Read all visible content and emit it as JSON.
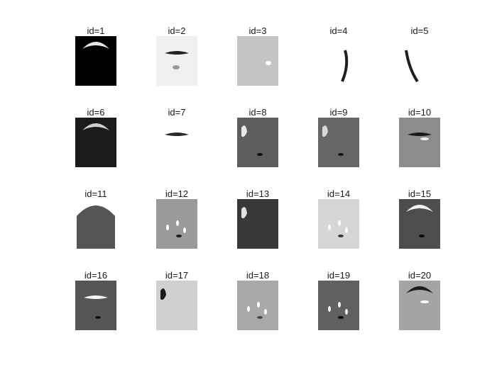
{
  "panels": [
    {
      "id": 1,
      "label": "id=1",
      "bg": "#000000",
      "features": [
        {
          "t": "arc",
          "c": "#e6e6e6"
        }
      ]
    },
    {
      "id": 2,
      "label": "id=2",
      "bg": "#f0f0f0",
      "features": [
        {
          "t": "bar",
          "c": "#222222"
        },
        {
          "t": "blob",
          "c": "#9a9a9a"
        }
      ]
    },
    {
      "id": 3,
      "label": "id=3",
      "bg": "#c4c4c4",
      "features": [
        {
          "t": "dot",
          "c": "#ffffff"
        }
      ]
    },
    {
      "id": 4,
      "label": "id=4",
      "bg": "#ffffff",
      "features": [
        {
          "t": "curve-right",
          "c": "#1f1f1f"
        }
      ]
    },
    {
      "id": 5,
      "label": "id=5",
      "bg": "#ffffff",
      "features": [
        {
          "t": "curve-left",
          "c": "#1f1f1f"
        }
      ]
    },
    {
      "id": 6,
      "label": "id=6",
      "bg": "#1b1b1b",
      "features": [
        {
          "t": "arc",
          "c": "#d0d0d0"
        }
      ]
    },
    {
      "id": 7,
      "label": "id=7",
      "bg": "#ffffff",
      "features": [
        {
          "t": "bar",
          "c": "#2a2a2a"
        }
      ]
    },
    {
      "id": 8,
      "label": "id=8",
      "bg": "#5d5d5d",
      "features": [
        {
          "t": "edge",
          "c": "#e8e8e8"
        },
        {
          "t": "dark",
          "c": "#101010"
        }
      ]
    },
    {
      "id": 9,
      "label": "id=9",
      "bg": "#666666",
      "features": [
        {
          "t": "edge",
          "c": "#d8d8d8"
        },
        {
          "t": "dark",
          "c": "#151515"
        }
      ]
    },
    {
      "id": 10,
      "label": "id=10",
      "bg": "#8c8c8c",
      "features": [
        {
          "t": "bar",
          "c": "#181818"
        },
        {
          "t": "light",
          "c": "#f0f0f0"
        }
      ]
    },
    {
      "id": 11,
      "label": "id=11",
      "bg": "#ffffff",
      "features": [
        {
          "t": "head",
          "c": "#555555"
        }
      ]
    },
    {
      "id": 12,
      "label": "id=12",
      "bg": "#9a9a9a",
      "features": [
        {
          "t": "spots",
          "c": "#ffffff"
        },
        {
          "t": "dark",
          "c": "#1e1e1e"
        }
      ]
    },
    {
      "id": 13,
      "label": "id=13",
      "bg": "#383838",
      "features": [
        {
          "t": "edge",
          "c": "#e0e0e0"
        }
      ]
    },
    {
      "id": 14,
      "label": "id=14",
      "bg": "#d6d6d6",
      "features": [
        {
          "t": "spots",
          "c": "#ffffff"
        },
        {
          "t": "dark",
          "c": "#3a3a3a"
        }
      ]
    },
    {
      "id": 15,
      "label": "id=15",
      "bg": "#4d4d4d",
      "features": [
        {
          "t": "arc",
          "c": "#f2f2f2"
        },
        {
          "t": "dark",
          "c": "#0a0a0a"
        }
      ]
    },
    {
      "id": 16,
      "label": "id=16",
      "bg": "#555555",
      "features": [
        {
          "t": "bar",
          "c": "#f5f5f5"
        },
        {
          "t": "dark",
          "c": "#111111"
        }
      ]
    },
    {
      "id": 17,
      "label": "id=17",
      "bg": "#d0d0d0",
      "features": [
        {
          "t": "edge",
          "c": "#1a1a1a"
        }
      ]
    },
    {
      "id": 18,
      "label": "id=18",
      "bg": "#a8a8a8",
      "features": [
        {
          "t": "spots",
          "c": "#ffffff"
        },
        {
          "t": "dark",
          "c": "#4a4a4a"
        }
      ]
    },
    {
      "id": 19,
      "label": "id=19",
      "bg": "#606060",
      "features": [
        {
          "t": "spots",
          "c": "#f4f4f4"
        },
        {
          "t": "dark",
          "c": "#0c0c0c"
        }
      ]
    },
    {
      "id": 20,
      "label": "id=20",
      "bg": "#a4a4a4",
      "features": [
        {
          "t": "arc",
          "c": "#1a1a1a"
        },
        {
          "t": "light",
          "c": "#ffffff"
        }
      ]
    }
  ]
}
